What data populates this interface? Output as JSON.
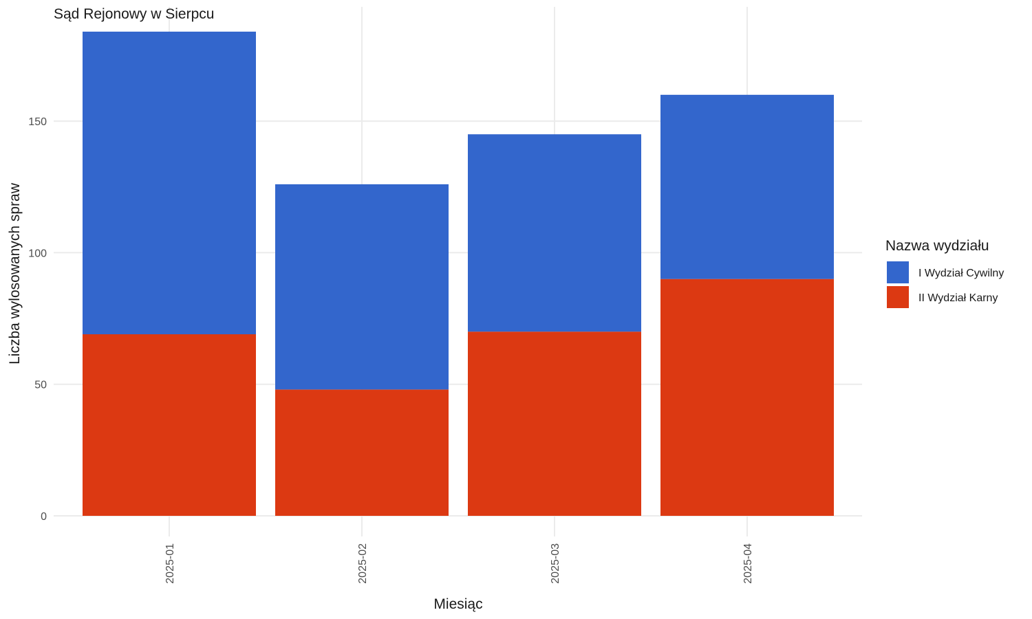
{
  "chart_data": {
    "type": "bar",
    "stacked": true,
    "title": "Sąd Rejonowy w Sierpcu",
    "xlabel": "Miesiąc",
    "ylabel": "Liczba wylosowanych spraw",
    "categories": [
      "2025-01",
      "2025-02",
      "2025-03",
      "2025-04"
    ],
    "series": [
      {
        "name": "II Wydział Karny",
        "values": [
          69,
          48,
          70,
          90
        ],
        "color": "#dc3912"
      },
      {
        "name": "I Wydział Cywilny",
        "values": [
          115,
          78,
          75,
          70
        ],
        "color": "#3366cc"
      }
    ],
    "ylim": [
      0,
      190
    ],
    "yticks": [
      0,
      50,
      100,
      150
    ],
    "grid": true,
    "legend": {
      "title": "Nazwa wydziału",
      "position": "right",
      "entries": [
        {
          "label": "I Wydział Cywilny",
          "color": "#3366cc"
        },
        {
          "label": "II Wydział Karny",
          "color": "#dc3912"
        }
      ]
    }
  }
}
